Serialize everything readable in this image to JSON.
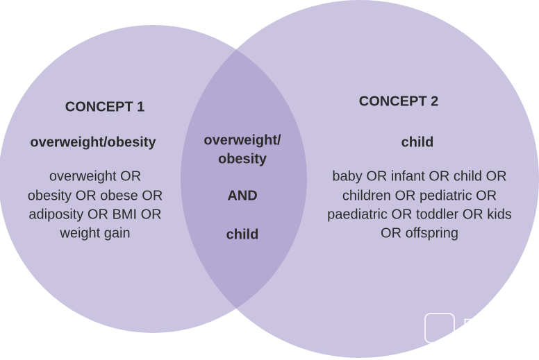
{
  "left": {
    "heading": "CONCEPT 1",
    "term": "overweight/obesity",
    "lines": [
      "overweight OR",
      "obesity OR obese OR",
      "adiposity OR BMI OR",
      "weight gain"
    ]
  },
  "overlap": {
    "lines": [
      "overweight/",
      "obesity"
    ],
    "operator": "AND",
    "term": "child"
  },
  "right": {
    "heading": "CONCEPT 2",
    "term": "child",
    "lines": [
      "baby OR infant OR child OR",
      "children OR pediatric OR",
      "paediatric OR toddler OR kids",
      "OR offspring"
    ]
  },
  "watermark": "医咖会"
}
